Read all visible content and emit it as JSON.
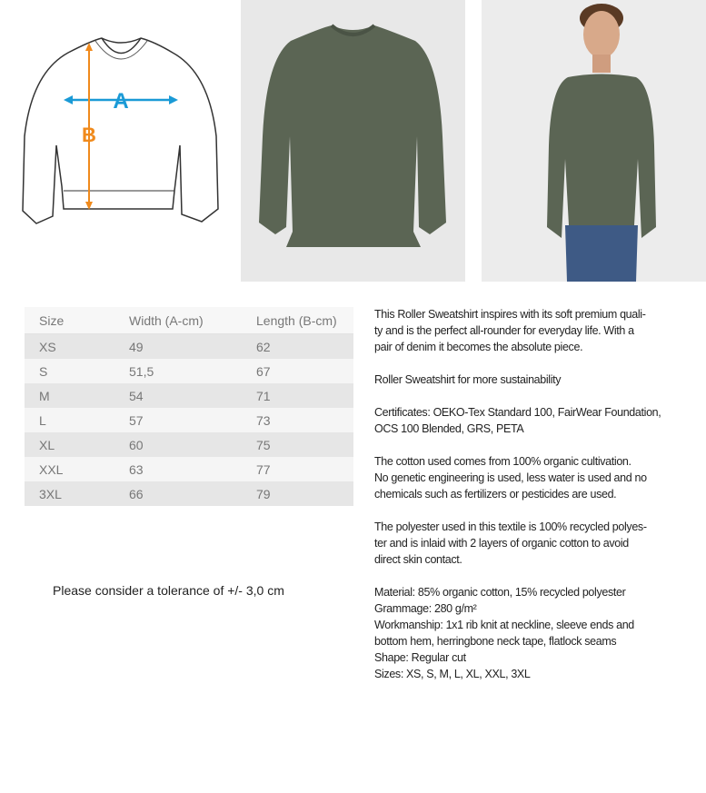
{
  "images": {
    "diagram": {
      "label_a": "A",
      "label_b": "B",
      "color_a": "#1a9ad6",
      "color_b": "#f08a1c"
    },
    "product_color": "#5b6554"
  },
  "size_table": {
    "headers": [
      "Size",
      "Width (A-cm)",
      "Length (B-cm)"
    ],
    "rows": [
      [
        "XS",
        "49",
        "62"
      ],
      [
        "S",
        "51,5",
        "67"
      ],
      [
        "M",
        "54",
        "71"
      ],
      [
        "L",
        "57",
        "73"
      ],
      [
        "XL",
        "60",
        "75"
      ],
      [
        "XXL",
        "63",
        "77"
      ],
      [
        "3XL",
        "66",
        "79"
      ]
    ]
  },
  "tolerance": "Please consider a tolerance of +/- 3,0 cm",
  "description_lines": [
    "This Roller Sweatshirt inspires with its soft premium quali-",
    "ty and is the perfect all-rounder for everyday life. With a",
    "pair of denim it becomes the absolute piece.",
    "",
    "Roller Sweatshirt for more sustainability",
    "",
    "Certificates: OEKO-Tex Standard 100, FairWear Foundation,",
    "OCS 100 Blended, GRS, PETA",
    "",
    "The cotton used comes from 100% organic cultivation.",
    "No genetic engineering is used, less water is used and no",
    "chemicals such as fertilizers or pesticides are used.",
    "",
    "The polyester used in this textile is 100% recycled polyes-",
    "ter and is inlaid with 2 layers of organic cotton to avoid",
    "direct skin contact.",
    "",
    "Material: 85% organic cotton, 15% recycled polyester",
    "Grammage: 280 g/m²",
    "Workmanship: 1x1 rib knit at neckline, sleeve ends and",
    "bottom hem, herringbone neck tape, flatlock seams",
    "Shape: Regular cut",
    "Sizes: XS, S, M, L, XL, XXL, 3XL"
  ]
}
